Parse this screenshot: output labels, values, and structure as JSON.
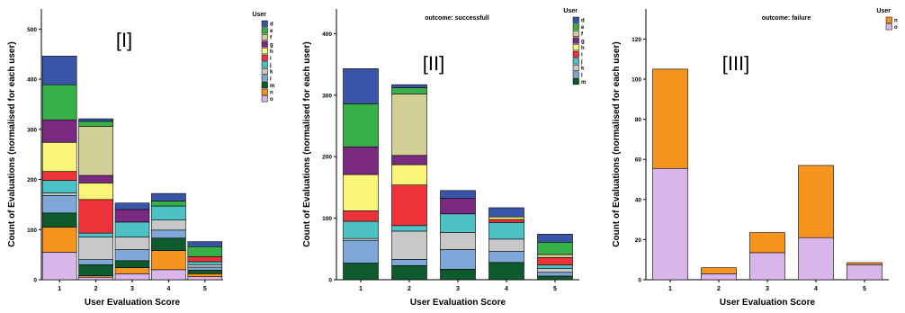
{
  "colors": {
    "d": "#3a55a8",
    "e": "#38b048",
    "f": "#d2cf96",
    "g": "#7b2a82",
    "h": "#f8f57a",
    "i": "#ee3338",
    "j": "#4dc2c6",
    "k": "#c8c8c8",
    "l": "#7fa7d8",
    "m": "#0e5a2c",
    "n": "#f6941f",
    "o": "#d8b6ea"
  },
  "chart_data": [
    {
      "type": "bar",
      "stacked": true,
      "panel_label": "[I]",
      "title": "",
      "xlabel": "User Evaluation Score",
      "ylabel": "Count of Evaluations (normalised for each user)",
      "categories": [
        "1",
        "2",
        "3",
        "4",
        "5"
      ],
      "ylim": [
        0,
        540
      ],
      "yticks": [
        0,
        100,
        200,
        300,
        400,
        500
      ],
      "legend": {
        "title": "User",
        "position": "top-right",
        "keys": [
          "d",
          "e",
          "f",
          "g",
          "h",
          "i",
          "j",
          "k",
          "l",
          "m",
          "n",
          "o"
        ]
      },
      "series": [
        {
          "name": "o",
          "values": [
            55,
            5,
            12,
            20,
            6
          ]
        },
        {
          "name": "n",
          "values": [
            50,
            3,
            12,
            38,
            6
          ]
        },
        {
          "name": "m",
          "values": [
            28,
            22,
            14,
            25,
            7
          ]
        },
        {
          "name": "l",
          "values": [
            35,
            10,
            22,
            16,
            6
          ]
        },
        {
          "name": "k",
          "values": [
            5,
            45,
            25,
            20,
            5
          ]
        },
        {
          "name": "j",
          "values": [
            25,
            8,
            30,
            28,
            6
          ]
        },
        {
          "name": "i",
          "values": [
            18,
            67,
            0,
            0,
            10
          ]
        },
        {
          "name": "h",
          "values": [
            58,
            33,
            0,
            0,
            0
          ]
        },
        {
          "name": "g",
          "values": [
            45,
            15,
            25,
            0,
            0
          ]
        },
        {
          "name": "f",
          "values": [
            0,
            98,
            0,
            0,
            0
          ]
        },
        {
          "name": "e",
          "values": [
            70,
            10,
            0,
            10,
            20
          ]
        },
        {
          "name": "d",
          "values": [
            57,
            5,
            13,
            15,
            10
          ]
        }
      ]
    },
    {
      "type": "bar",
      "stacked": true,
      "panel_label": "[II]",
      "title": "outcome: successfull",
      "xlabel": "User Evaluation Score",
      "ylabel": "Count of Evaluations (normalised for each user)",
      "categories": [
        "1",
        "2",
        "3",
        "4",
        "5"
      ],
      "ylim": [
        0,
        440
      ],
      "yticks": [
        0,
        100,
        200,
        300,
        400
      ],
      "legend": {
        "title": "User",
        "position": "top-right",
        "keys": [
          "d",
          "e",
          "f",
          "g",
          "h",
          "i",
          "j",
          "k",
          "l",
          "m"
        ]
      },
      "series": [
        {
          "name": "m",
          "values": [
            27,
            23,
            17,
            28,
            6
          ]
        },
        {
          "name": "l",
          "values": [
            37,
            10,
            32,
            18,
            6
          ]
        },
        {
          "name": "k",
          "values": [
            3,
            46,
            28,
            20,
            6
          ]
        },
        {
          "name": "j",
          "values": [
            28,
            9,
            30,
            27,
            6
          ]
        },
        {
          "name": "i",
          "values": [
            17,
            66,
            0,
            5,
            12
          ]
        },
        {
          "name": "h",
          "values": [
            59,
            33,
            0,
            4,
            0
          ]
        },
        {
          "name": "g",
          "values": [
            45,
            15,
            25,
            0,
            0
          ]
        },
        {
          "name": "f",
          "values": [
            0,
            100,
            0,
            0,
            5
          ]
        },
        {
          "name": "e",
          "values": [
            70,
            10,
            0,
            0,
            20
          ]
        },
        {
          "name": "d",
          "values": [
            57,
            5,
            13,
            15,
            13
          ]
        }
      ]
    },
    {
      "type": "bar",
      "stacked": true,
      "panel_label": "[III]",
      "title": "outcome: failure",
      "xlabel": "User Evaluation Score",
      "ylabel": "Count of Evaluations (normalised for each user)",
      "categories": [
        "1",
        "2",
        "3",
        "4",
        "5"
      ],
      "ylim": [
        0,
        135
      ],
      "yticks": [
        0,
        20,
        40,
        60,
        80,
        100,
        120
      ],
      "legend": {
        "title": "User",
        "position": "top-right",
        "keys": [
          "n",
          "o"
        ]
      },
      "series": [
        {
          "name": "o",
          "values": [
            55.5,
            3,
            13.5,
            21,
            7.5
          ]
        },
        {
          "name": "n",
          "values": [
            49.5,
            3,
            10,
            36,
            1
          ]
        }
      ]
    }
  ]
}
